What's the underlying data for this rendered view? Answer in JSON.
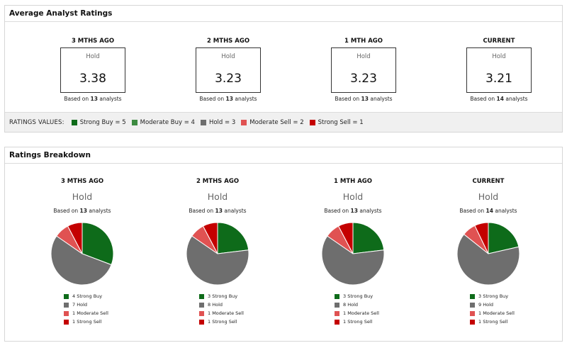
{
  "colors": {
    "strong_buy": "#0e6b1a",
    "moderate_buy": "#3d8b41",
    "hold": "#6e6e6e",
    "moderate_sell": "#e05252",
    "strong_sell": "#c40000"
  },
  "average_ratings": {
    "title": "Average Analyst Ratings",
    "columns": [
      {
        "period": "3 MTHS AGO",
        "rating": "Hold",
        "score": "3.38",
        "based_prefix": "Based on",
        "count": "13",
        "based_suffix": "analysts"
      },
      {
        "period": "2 MTHS AGO",
        "rating": "Hold",
        "score": "3.23",
        "based_prefix": "Based on",
        "count": "13",
        "based_suffix": "analysts"
      },
      {
        "period": "1 MTH AGO",
        "rating": "Hold",
        "score": "3.23",
        "based_prefix": "Based on",
        "count": "13",
        "based_suffix": "analysts"
      },
      {
        "period": "CURRENT",
        "rating": "Hold",
        "score": "3.21",
        "based_prefix": "Based on",
        "count": "14",
        "based_suffix": "analysts"
      }
    ],
    "legend_title": "RATINGS VALUES:",
    "legend": [
      {
        "label": "Strong Buy = 5",
        "color": "#0e6b1a"
      },
      {
        "label": "Moderate Buy = 4",
        "color": "#3d8b41"
      },
      {
        "label": "Hold = 3",
        "color": "#6e6e6e"
      },
      {
        "label": "Moderate Sell = 2",
        "color": "#e05252"
      },
      {
        "label": "Strong Sell = 1",
        "color": "#c40000"
      }
    ]
  },
  "breakdown": {
    "title": "Ratings Breakdown",
    "columns": [
      {
        "period": "3 MTHS AGO",
        "rating": "Hold",
        "based_prefix": "Based on",
        "count": "13",
        "based_suffix": "analysts",
        "legend": [
          "4 Strong Buy",
          "7 Hold",
          "1 Moderate Sell",
          "1 Strong Sell"
        ]
      },
      {
        "period": "2 MTHS AGO",
        "rating": "Hold",
        "based_prefix": "Based on",
        "count": "13",
        "based_suffix": "analysts",
        "legend": [
          "3 Strong Buy",
          "8 Hold",
          "1 Moderate Sell",
          "1 Strong Sell"
        ]
      },
      {
        "period": "1 MTH AGO",
        "rating": "Hold",
        "based_prefix": "Based on",
        "count": "13",
        "based_suffix": "analysts",
        "legend": [
          "3 Strong Buy",
          "8 Hold",
          "1 Moderate Sell",
          "1 Strong Sell"
        ]
      },
      {
        "period": "CURRENT",
        "rating": "Hold",
        "based_prefix": "Based on",
        "count": "14",
        "based_suffix": "analysts",
        "legend": [
          "3 Strong Buy",
          "9 Hold",
          "1 Moderate Sell",
          "1 Strong Sell"
        ]
      }
    ]
  },
  "chart_data": [
    {
      "type": "pie",
      "categories": [
        "Strong Buy",
        "Hold",
        "Moderate Sell",
        "Strong Sell"
      ],
      "values": [
        4,
        7,
        1,
        1
      ],
      "colors": [
        "#0e6b1a",
        "#6e6e6e",
        "#e05252",
        "#c40000"
      ]
    },
    {
      "type": "pie",
      "categories": [
        "Strong Buy",
        "Hold",
        "Moderate Sell",
        "Strong Sell"
      ],
      "values": [
        3,
        8,
        1,
        1
      ],
      "colors": [
        "#0e6b1a",
        "#6e6e6e",
        "#e05252",
        "#c40000"
      ]
    },
    {
      "type": "pie",
      "categories": [
        "Strong Buy",
        "Hold",
        "Moderate Sell",
        "Strong Sell"
      ],
      "values": [
        3,
        8,
        1,
        1
      ],
      "colors": [
        "#0e6b1a",
        "#6e6e6e",
        "#e05252",
        "#c40000"
      ]
    },
    {
      "type": "pie",
      "categories": [
        "Strong Buy",
        "Hold",
        "Moderate Sell",
        "Strong Sell"
      ],
      "values": [
        3,
        9,
        1,
        1
      ],
      "colors": [
        "#0e6b1a",
        "#6e6e6e",
        "#e05252",
        "#c40000"
      ]
    }
  ]
}
